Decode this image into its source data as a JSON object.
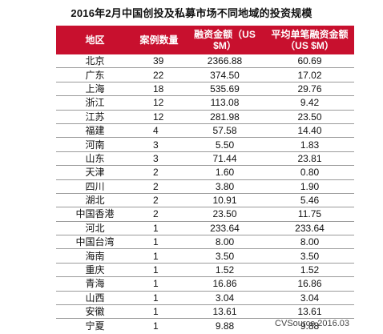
{
  "title": "2016年2月中国创投及私募市场不同地域的投资规模",
  "table": {
    "headers": {
      "region": "地区",
      "count": "案例数量",
      "amount_line1": "融资金额（US",
      "amount_line2": "$M）",
      "avg_line1": "平均单笔融资金额",
      "avg_line2": "（US $M）"
    },
    "rows": [
      {
        "region": "北京",
        "count": "39",
        "amount": "2366.88",
        "avg": "60.69"
      },
      {
        "region": "广东",
        "count": "22",
        "amount": "374.50",
        "avg": "17.02"
      },
      {
        "region": "上海",
        "count": "18",
        "amount": "535.69",
        "avg": "29.76"
      },
      {
        "region": "浙江",
        "count": "12",
        "amount": "113.08",
        "avg": "9.42"
      },
      {
        "region": "江苏",
        "count": "12",
        "amount": "281.98",
        "avg": "23.50"
      },
      {
        "region": "福建",
        "count": "4",
        "amount": "57.58",
        "avg": "14.40"
      },
      {
        "region": "河南",
        "count": "3",
        "amount": "5.50",
        "avg": "1.83"
      },
      {
        "region": "山东",
        "count": "3",
        "amount": "71.44",
        "avg": "23.81"
      },
      {
        "region": "天津",
        "count": "2",
        "amount": "1.60",
        "avg": "0.80"
      },
      {
        "region": "四川",
        "count": "2",
        "amount": "3.80",
        "avg": "1.90"
      },
      {
        "region": "湖北",
        "count": "2",
        "amount": "10.91",
        "avg": "5.46"
      },
      {
        "region": "中国香港",
        "count": "2",
        "amount": "23.50",
        "avg": "11.75"
      },
      {
        "region": "河北",
        "count": "1",
        "amount": "233.64",
        "avg": "233.64"
      },
      {
        "region": "中国台湾",
        "count": "1",
        "amount": "8.00",
        "avg": "8.00"
      },
      {
        "region": "海南",
        "count": "1",
        "amount": "3.50",
        "avg": "3.50"
      },
      {
        "region": "重庆",
        "count": "1",
        "amount": "1.52",
        "avg": "1.52"
      },
      {
        "region": "青海",
        "count": "1",
        "amount": "16.86",
        "avg": "16.86"
      },
      {
        "region": "山西",
        "count": "1",
        "amount": "3.04",
        "avg": "3.04"
      },
      {
        "region": "安徽",
        "count": "1",
        "amount": "13.61",
        "avg": "13.61"
      },
      {
        "region": "宁夏",
        "count": "1",
        "amount": "9.88",
        "avg": "9.88"
      }
    ]
  },
  "source": "CVSource 2016.03",
  "colors": {
    "header_bg": "#c8102e",
    "header_text": "#ffffff",
    "row_divider": "#9a9a9a"
  }
}
